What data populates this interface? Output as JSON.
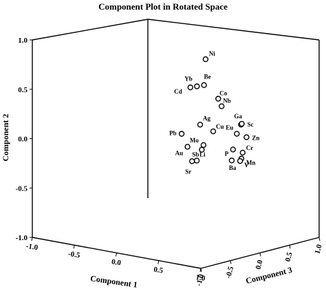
{
  "chart_data": {
    "type": "scatter",
    "title": "Component Plot in Rotated Space",
    "x_axis_label": "Component 1",
    "y_axis_label": "Component 2",
    "z_axis_label": "Component 3",
    "x_ticks": [
      "-1.0",
      "-0.5",
      "0.0",
      "0.5",
      "1.0"
    ],
    "y_ticks": [
      "-1.0",
      "-0.5",
      "0.0",
      "0.5",
      "1.0"
    ],
    "z_ticks": [
      "-1.0",
      "-0.5",
      "0.0",
      "0.5",
      "1.0"
    ],
    "axis_range": [
      -1,
      1
    ],
    "points": [
      {
        "label": "Ni",
        "x": 0.46,
        "y": 0.9,
        "z": -0.15
      },
      {
        "label": "Yb",
        "x": 0.49,
        "y": 0.66,
        "z": -0.34
      },
      {
        "label": "Be",
        "x": 0.56,
        "y": 0.68,
        "z": -0.32
      },
      {
        "label": "Cd",
        "x": 0.42,
        "y": 0.64,
        "z": -0.35
      },
      {
        "label": "Co",
        "x": 0.68,
        "y": 0.55,
        "z": -0.25
      },
      {
        "label": "Nb",
        "x": 0.72,
        "y": 0.48,
        "z": -0.25
      },
      {
        "label": "Ag",
        "x": 0.43,
        "y": 0.24,
        "z": -0.2
      },
      {
        "label": "Cu",
        "x": 0.62,
        "y": 0.21,
        "z": -0.25
      },
      {
        "label": "Ga",
        "x": 0.95,
        "y": 0.33,
        "z": -0.25
      },
      {
        "label": "Sc",
        "x": 0.96,
        "y": 0.34,
        "z": -0.25
      },
      {
        "label": "Eu",
        "x": 0.9,
        "y": 0.23,
        "z": -0.25
      },
      {
        "label": "Zn",
        "x": 0.98,
        "y": 0.2,
        "z": -0.2
      },
      {
        "label": "Cr",
        "x": 0.97,
        "y": 0.05,
        "z": -0.25
      },
      {
        "label": "Mn",
        "x": 0.99,
        "y": 0.0,
        "z": -0.3
      },
      {
        "label": "P",
        "x": 0.82,
        "y": 0.05,
        "z": -0.2
      },
      {
        "label": "V",
        "x": 0.94,
        "y": -0.04,
        "z": -0.25
      },
      {
        "label": "Ba",
        "x": 0.84,
        "y": -0.05,
        "z": -0.25
      },
      {
        "label": "Mo",
        "x": 0.47,
        "y": 0.04,
        "z": -0.2
      },
      {
        "label": "Sb",
        "x": 0.45,
        "y": -0.01,
        "z": -0.2
      },
      {
        "label": "Li",
        "x": 0.39,
        "y": -0.13,
        "z": -0.2
      },
      {
        "label": "Sr",
        "x": 0.32,
        "y": -0.15,
        "z": -0.18
      },
      {
        "label": "Pb",
        "x": 0.07,
        "y": 0.06,
        "z": 0.0
      },
      {
        "label": "Au",
        "x": 0.14,
        "y": -0.06,
        "z": 0.0
      }
    ]
  }
}
